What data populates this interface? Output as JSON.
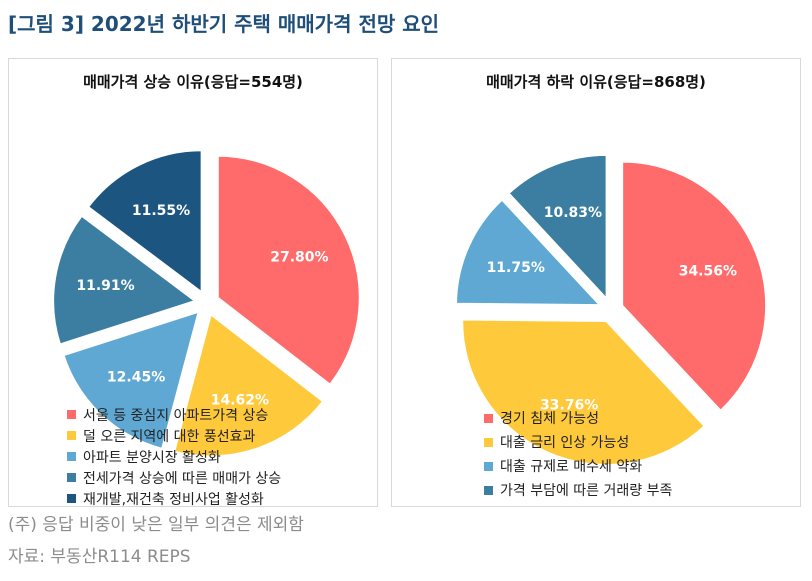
{
  "figure_title": "[그림 3] 2022년 하반기 주택 매매가격 전망 요인",
  "note": "(주) 응답 비중이 낮은 일부 의견은 제외함",
  "source": "자료: 부동산R114 REPS",
  "chart_data": [
    {
      "type": "pie",
      "title": "매매가격 상승 이유(응답=554명)",
      "categories": [
        "서울 등 중심지 아파트가격 상승",
        "덜 오른 지역에 대한 풍선효과",
        "아파트 분양시장 활성화",
        "전세가격 상승에 따른 매매가 상승",
        "재개발,재건축 정비사업 활성화"
      ],
      "values": [
        27.8,
        14.62,
        12.45,
        11.91,
        11.55
      ],
      "labels": [
        "27.80%",
        "14.62%",
        "12.45%",
        "11.91%",
        "11.55%"
      ],
      "colors": [
        "#ff6b6b",
        "#ffc93c",
        "#5fa8d3",
        "#3b7ea1",
        "#1c5580"
      ],
      "legend_position": "bottom"
    },
    {
      "type": "pie",
      "title": "매매가격 하락 이유(응답=868명)",
      "categories": [
        "경기 침체 가능성",
        "대출 금리 인상 가능성",
        "대출 규제로 매수세 약화",
        "가격 부담에 따른 거래량 부족"
      ],
      "values": [
        34.56,
        33.76,
        11.75,
        10.83
      ],
      "labels": [
        "34.56%",
        "33.76%",
        "11.75%",
        "10.83%"
      ],
      "colors": [
        "#ff6b6b",
        "#ffc93c",
        "#5fa8d3",
        "#3b7ea1"
      ],
      "legend_position": "bottom"
    }
  ]
}
